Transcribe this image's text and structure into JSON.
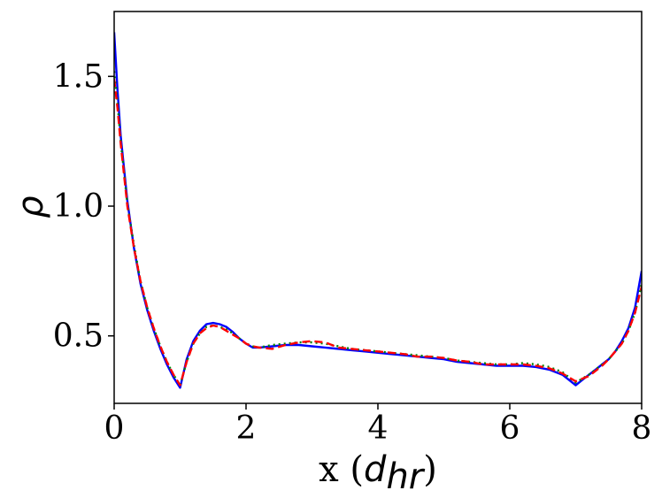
{
  "chart_data": {
    "type": "line",
    "xlabel": {
      "main": "x (",
      "var": "d",
      "sub": "hr",
      "close": ")"
    },
    "ylabel": "ρ",
    "xlim": [
      0,
      8
    ],
    "ylim": [
      0.24,
      1.75
    ],
    "xticks": [
      {
        "value": 0,
        "label": "0"
      },
      {
        "value": 2,
        "label": "2"
      },
      {
        "value": 4,
        "label": "4"
      },
      {
        "value": 6,
        "label": "6"
      },
      {
        "value": 8,
        "label": "8"
      }
    ],
    "yticks": [
      {
        "value": 0.5,
        "label": "0.5"
      },
      {
        "value": 1.0,
        "label": "1.0"
      },
      {
        "value": 1.5,
        "label": "1.5"
      }
    ],
    "grid": false,
    "series": [
      {
        "color": "#0000ff",
        "style": "solid",
        "x": [
          0.0,
          0.05,
          0.1,
          0.2,
          0.3,
          0.4,
          0.5,
          0.6,
          0.7,
          0.8,
          0.9,
          1.0,
          1.1,
          1.2,
          1.3,
          1.4,
          1.5,
          1.6,
          1.7,
          1.8,
          1.9,
          2.0,
          2.1,
          2.2,
          2.4,
          2.6,
          2.8,
          3.0,
          3.2,
          3.4,
          3.6,
          3.8,
          4.0,
          4.2,
          4.4,
          4.6,
          4.8,
          5.0,
          5.2,
          5.4,
          5.6,
          5.8,
          6.0,
          6.2,
          6.4,
          6.6,
          6.8,
          7.0,
          7.1,
          7.2,
          7.3,
          7.4,
          7.5,
          7.6,
          7.7,
          7.8,
          7.9,
          8.0
        ],
        "y": [
          1.67,
          1.45,
          1.27,
          1.02,
          0.84,
          0.7,
          0.6,
          0.52,
          0.45,
          0.39,
          0.34,
          0.3,
          0.41,
          0.48,
          0.52,
          0.545,
          0.55,
          0.545,
          0.535,
          0.515,
          0.49,
          0.47,
          0.455,
          0.455,
          0.46,
          0.465,
          0.465,
          0.46,
          0.455,
          0.45,
          0.445,
          0.44,
          0.435,
          0.43,
          0.425,
          0.42,
          0.415,
          0.41,
          0.4,
          0.395,
          0.39,
          0.385,
          0.385,
          0.385,
          0.38,
          0.37,
          0.35,
          0.31,
          0.33,
          0.35,
          0.37,
          0.39,
          0.41,
          0.44,
          0.48,
          0.53,
          0.61,
          0.75
        ]
      },
      {
        "color": "#008000",
        "style": "dotted",
        "x": [
          0.0,
          0.05,
          0.1,
          0.2,
          0.3,
          0.4,
          0.5,
          0.6,
          0.7,
          0.8,
          0.9,
          1.0,
          1.1,
          1.2,
          1.3,
          1.4,
          1.5,
          1.6,
          1.7,
          1.8,
          1.9,
          2.0,
          2.1,
          2.2,
          2.4,
          2.6,
          2.8,
          3.0,
          3.2,
          3.4,
          3.6,
          3.8,
          4.0,
          4.2,
          4.4,
          4.6,
          4.8,
          5.0,
          5.2,
          5.4,
          5.6,
          5.8,
          6.0,
          6.2,
          6.4,
          6.6,
          6.8,
          7.0,
          7.1,
          7.2,
          7.3,
          7.4,
          7.5,
          7.6,
          7.7,
          7.8,
          7.9,
          8.0
        ],
        "y": [
          1.52,
          1.4,
          1.25,
          1.01,
          0.85,
          0.71,
          0.61,
          0.53,
          0.46,
          0.4,
          0.35,
          0.31,
          0.4,
          0.47,
          0.51,
          0.535,
          0.54,
          0.535,
          0.525,
          0.51,
          0.49,
          0.47,
          0.46,
          0.455,
          0.465,
          0.47,
          0.475,
          0.475,
          0.47,
          0.46,
          0.45,
          0.445,
          0.44,
          0.435,
          0.43,
          0.425,
          0.42,
          0.415,
          0.405,
          0.4,
          0.395,
          0.39,
          0.39,
          0.395,
          0.39,
          0.38,
          0.36,
          0.32,
          0.335,
          0.35,
          0.37,
          0.39,
          0.41,
          0.44,
          0.47,
          0.52,
          0.59,
          0.7
        ]
      },
      {
        "color": "#ff0000",
        "style": "dashed",
        "x": [
          0.0,
          0.05,
          0.1,
          0.2,
          0.3,
          0.4,
          0.5,
          0.6,
          0.7,
          0.8,
          0.9,
          1.0,
          1.1,
          1.2,
          1.3,
          1.4,
          1.5,
          1.6,
          1.7,
          1.8,
          1.9,
          2.0,
          2.1,
          2.2,
          2.4,
          2.6,
          2.8,
          3.0,
          3.2,
          3.4,
          3.6,
          3.8,
          4.0,
          4.2,
          4.4,
          4.6,
          4.8,
          5.0,
          5.2,
          5.4,
          5.6,
          5.8,
          6.0,
          6.2,
          6.4,
          6.6,
          6.8,
          7.0,
          7.1,
          7.2,
          7.3,
          7.4,
          7.5,
          7.6,
          7.7,
          7.8,
          7.9,
          8.0
        ],
        "y": [
          1.49,
          1.38,
          1.24,
          1.0,
          0.84,
          0.71,
          0.61,
          0.53,
          0.46,
          0.4,
          0.35,
          0.31,
          0.4,
          0.47,
          0.51,
          0.53,
          0.54,
          0.535,
          0.52,
          0.505,
          0.49,
          0.47,
          0.46,
          0.455,
          0.45,
          0.465,
          0.475,
          0.48,
          0.475,
          0.455,
          0.45,
          0.445,
          0.44,
          0.435,
          0.43,
          0.42,
          0.42,
          0.415,
          0.405,
          0.4,
          0.39,
          0.39,
          0.39,
          0.39,
          0.385,
          0.375,
          0.355,
          0.325,
          0.335,
          0.345,
          0.365,
          0.385,
          0.41,
          0.44,
          0.47,
          0.52,
          0.59,
          0.69
        ]
      }
    ]
  }
}
